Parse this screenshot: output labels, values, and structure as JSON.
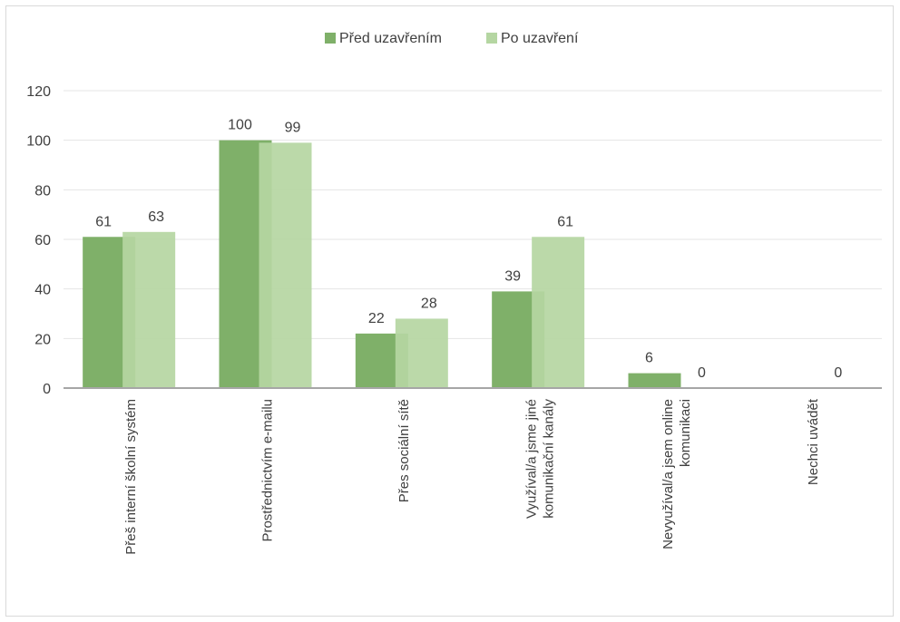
{
  "chart_data": {
    "type": "bar",
    "categories": [
      "Přeš interní školní systém",
      "Prostřednictvím e-mailu",
      "Přes sociální sítě",
      "Využíval/a jsme jiné komunikační kanály",
      "Nevyužíval/a jsem online komunikaci",
      "Nechci uvádět"
    ],
    "category_lines": [
      [
        "Přeš interní školní systém"
      ],
      [
        "Prostřednictvím e-mailu"
      ],
      [
        "Přes sociální sítě"
      ],
      [
        "Využíval/a jsme jiné",
        "komunikační kanály"
      ],
      [
        "Nevyužíval/a jsem online",
        "komunikaci"
      ],
      [
        "Nechci uvádět"
      ]
    ],
    "series": [
      {
        "name": "Před uzavřením",
        "color": "#7fb069",
        "values": [
          61,
          100,
          22,
          39,
          6,
          null
        ]
      },
      {
        "name": "Po uzavření",
        "color": "#b5d6a2",
        "values": [
          63,
          99,
          28,
          61,
          0,
          0
        ]
      }
    ],
    "ylim": [
      0,
      120
    ],
    "yticks": [
      0,
      20,
      40,
      60,
      80,
      100,
      120
    ],
    "grid": true,
    "legend_position": "top-center"
  }
}
